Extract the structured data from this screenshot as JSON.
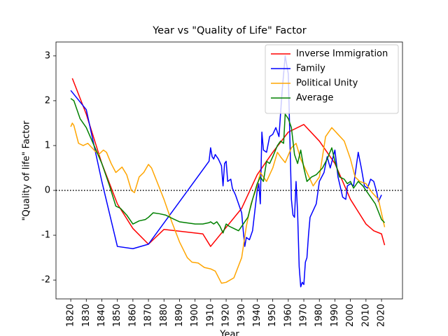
{
  "chart_data": {
    "type": "line",
    "title": "Year vs \"Quality of Life\" Factor",
    "xlabel": "Year",
    "ylabel": "\"Quality of life\" Factor",
    "xlim": [
      1810.5,
      2033.5
    ],
    "ylim": [
      -2.42,
      3.31
    ],
    "xticks": [
      1820,
      1830,
      1840,
      1850,
      1860,
      1870,
      1880,
      1890,
      1900,
      1910,
      1920,
      1930,
      1940,
      1950,
      1960,
      1970,
      1980,
      1990,
      2000,
      2010,
      2020
    ],
    "yticks": [
      -2,
      -1,
      0,
      1,
      2,
      3
    ],
    "legend": "upper right",
    "reference_line": {
      "value": 0,
      "style": "dotted",
      "color": "#000000"
    },
    "series": [
      {
        "name": "Inverse Immigration",
        "color": "#ff0000",
        "x": [
          1821,
          1830,
          1840,
          1850,
          1860,
          1870,
          1880,
          1905,
          1910,
          1930,
          1940,
          1950,
          1960,
          1970,
          1980,
          1990,
          2000,
          2010,
          2015,
          2020,
          2022
        ],
        "values": [
          2.5,
          1.7,
          0.6,
          -0.3,
          -0.85,
          -1.2,
          -0.87,
          -0.97,
          -1.25,
          -0.4,
          0.35,
          0.85,
          1.3,
          1.47,
          1.1,
          0.6,
          -0.2,
          -0.75,
          -0.9,
          -0.97,
          -1.22
        ]
      },
      {
        "name": "Family",
        "color": "#0000ff",
        "x": [
          1820,
          1830,
          1840,
          1850,
          1860,
          1870,
          1909,
          1910,
          1911,
          1912,
          1913,
          1915,
          1917,
          1918,
          1919,
          1920,
          1921,
          1923,
          1924,
          1926,
          1928,
          1930,
          1931,
          1932,
          1933,
          1935,
          1937,
          1938,
          1940,
          1941,
          1942,
          1943,
          1944,
          1946,
          1948,
          1950,
          1952,
          1954,
          1956,
          1958,
          1960,
          1961,
          1962,
          1963,
          1964,
          1965,
          1966,
          1967,
          1968,
          1969,
          1970,
          1971,
          1972,
          1973,
          1974,
          1976,
          1978,
          1980,
          1983,
          1985,
          1987,
          1990,
          1992,
          1995,
          1997,
          1998,
          2000,
          2002,
          2005,
          2007,
          2009,
          2011,
          2013,
          2015,
          2017,
          2018,
          2020
        ],
        "values": [
          2.23,
          1.8,
          0.2,
          -1.25,
          -1.3,
          -1.2,
          0.65,
          0.95,
          0.75,
          0.7,
          0.8,
          0.7,
          0.55,
          0.1,
          0.6,
          0.65,
          0.2,
          0.25,
          0.05,
          -0.1,
          -0.3,
          -0.5,
          -0.9,
          -1.25,
          -1.05,
          -1.1,
          -0.9,
          -0.6,
          0,
          0.15,
          -0.3,
          1.3,
          0.9,
          0.85,
          1.2,
          1.25,
          1.4,
          1.2,
          2.2,
          3.0,
          2.6,
          1.2,
          -0.2,
          -0.55,
          -0.6,
          0.2,
          -0.5,
          -1.7,
          -2.15,
          -2.05,
          -2.1,
          -1.6,
          -1.5,
          -1.0,
          -0.6,
          -0.45,
          -0.3,
          0.2,
          0.4,
          0.75,
          0.5,
          0.9,
          0.3,
          -0.15,
          -0.2,
          0.1,
          0.15,
          0.1,
          0.85,
          0.5,
          0.1,
          0.05,
          0.25,
          0.2,
          -0.05,
          -0.25,
          -0.1
        ]
      },
      {
        "name": "Political Unity",
        "color": "#ffa500",
        "x": [
          1820,
          1821,
          1822,
          1825,
          1828,
          1831,
          1835,
          1838,
          1841,
          1843,
          1846,
          1849,
          1853,
          1856,
          1859,
          1861,
          1864,
          1867,
          1870,
          1872,
          1876,
          1880,
          1885,
          1890,
          1895,
          1898,
          1902,
          1906,
          1910,
          1913,
          1917,
          1920,
          1925,
          1930,
          1933,
          1936,
          1940,
          1942,
          1946,
          1950,
          1953,
          1955,
          1958,
          1962,
          1965,
          1968,
          1972,
          1976,
          1980,
          1984,
          1988,
          1992,
          1996,
          2000,
          2003,
          2006,
          2010,
          2014,
          2018,
          2022
        ],
        "values": [
          1.42,
          1.5,
          1.45,
          1.05,
          1.0,
          1.05,
          0.9,
          0.8,
          0.9,
          0.85,
          0.6,
          0.4,
          0.52,
          0.35,
          0.0,
          -0.05,
          0.3,
          0.4,
          0.58,
          0.5,
          0.15,
          -0.2,
          -0.7,
          -1.15,
          -1.5,
          -1.6,
          -1.62,
          -1.72,
          -1.75,
          -1.8,
          -2.07,
          -2.05,
          -1.95,
          -1.5,
          -0.8,
          -0.3,
          0.1,
          0.4,
          0.2,
          0.5,
          0.85,
          0.75,
          0.62,
          0.95,
          1.05,
          0.7,
          0.4,
          0.1,
          0.3,
          1.2,
          1.4,
          1.25,
          1.1,
          0.7,
          0.3,
          0.2,
          0.15,
          -0.05,
          -0.2,
          -0.82
        ]
      },
      {
        "name": "Average",
        "color": "#008000",
        "x": [
          1820,
          1822,
          1826,
          1830,
          1835,
          1840,
          1845,
          1849,
          1852,
          1856,
          1860,
          1864,
          1868,
          1870,
          1873,
          1877,
          1881,
          1885,
          1890,
          1900,
          1905,
          1909,
          1910,
          1912,
          1914,
          1916,
          1918,
          1920,
          1922,
          1925,
          1928,
          1931,
          1934,
          1937,
          1940,
          1942,
          1944,
          1946,
          1948,
          1950,
          1953,
          1955,
          1957,
          1958,
          1960,
          1962,
          1964,
          1966,
          1968,
          1970,
          1972,
          1975,
          1978,
          1982,
          1985,
          1988,
          1990,
          1993,
          1996,
          1998,
          2000,
          2002,
          2005,
          2008,
          2012,
          2016,
          2020,
          2022
        ],
        "values": [
          2.05,
          2.0,
          1.6,
          1.4,
          1.0,
          0.6,
          0.1,
          -0.35,
          -0.4,
          -0.55,
          -0.75,
          -0.68,
          -0.65,
          -0.6,
          -0.5,
          -0.52,
          -0.55,
          -0.62,
          -0.7,
          -0.75,
          -0.75,
          -0.72,
          -0.7,
          -0.75,
          -0.7,
          -0.8,
          -0.95,
          -0.75,
          -0.8,
          -0.85,
          -0.9,
          -0.75,
          -0.6,
          -0.2,
          0.15,
          0.3,
          0.2,
          0.65,
          0.6,
          0.75,
          1.0,
          1.1,
          1.05,
          1.7,
          1.6,
          1.4,
          0.8,
          0.6,
          0.9,
          0.5,
          0.2,
          0.3,
          0.35,
          0.5,
          0.7,
          0.95,
          0.65,
          0.3,
          0.25,
          0.15,
          0.2,
          0.05,
          0.2,
          0.1,
          -0.1,
          -0.3,
          -0.65,
          -0.72
        ]
      }
    ]
  }
}
